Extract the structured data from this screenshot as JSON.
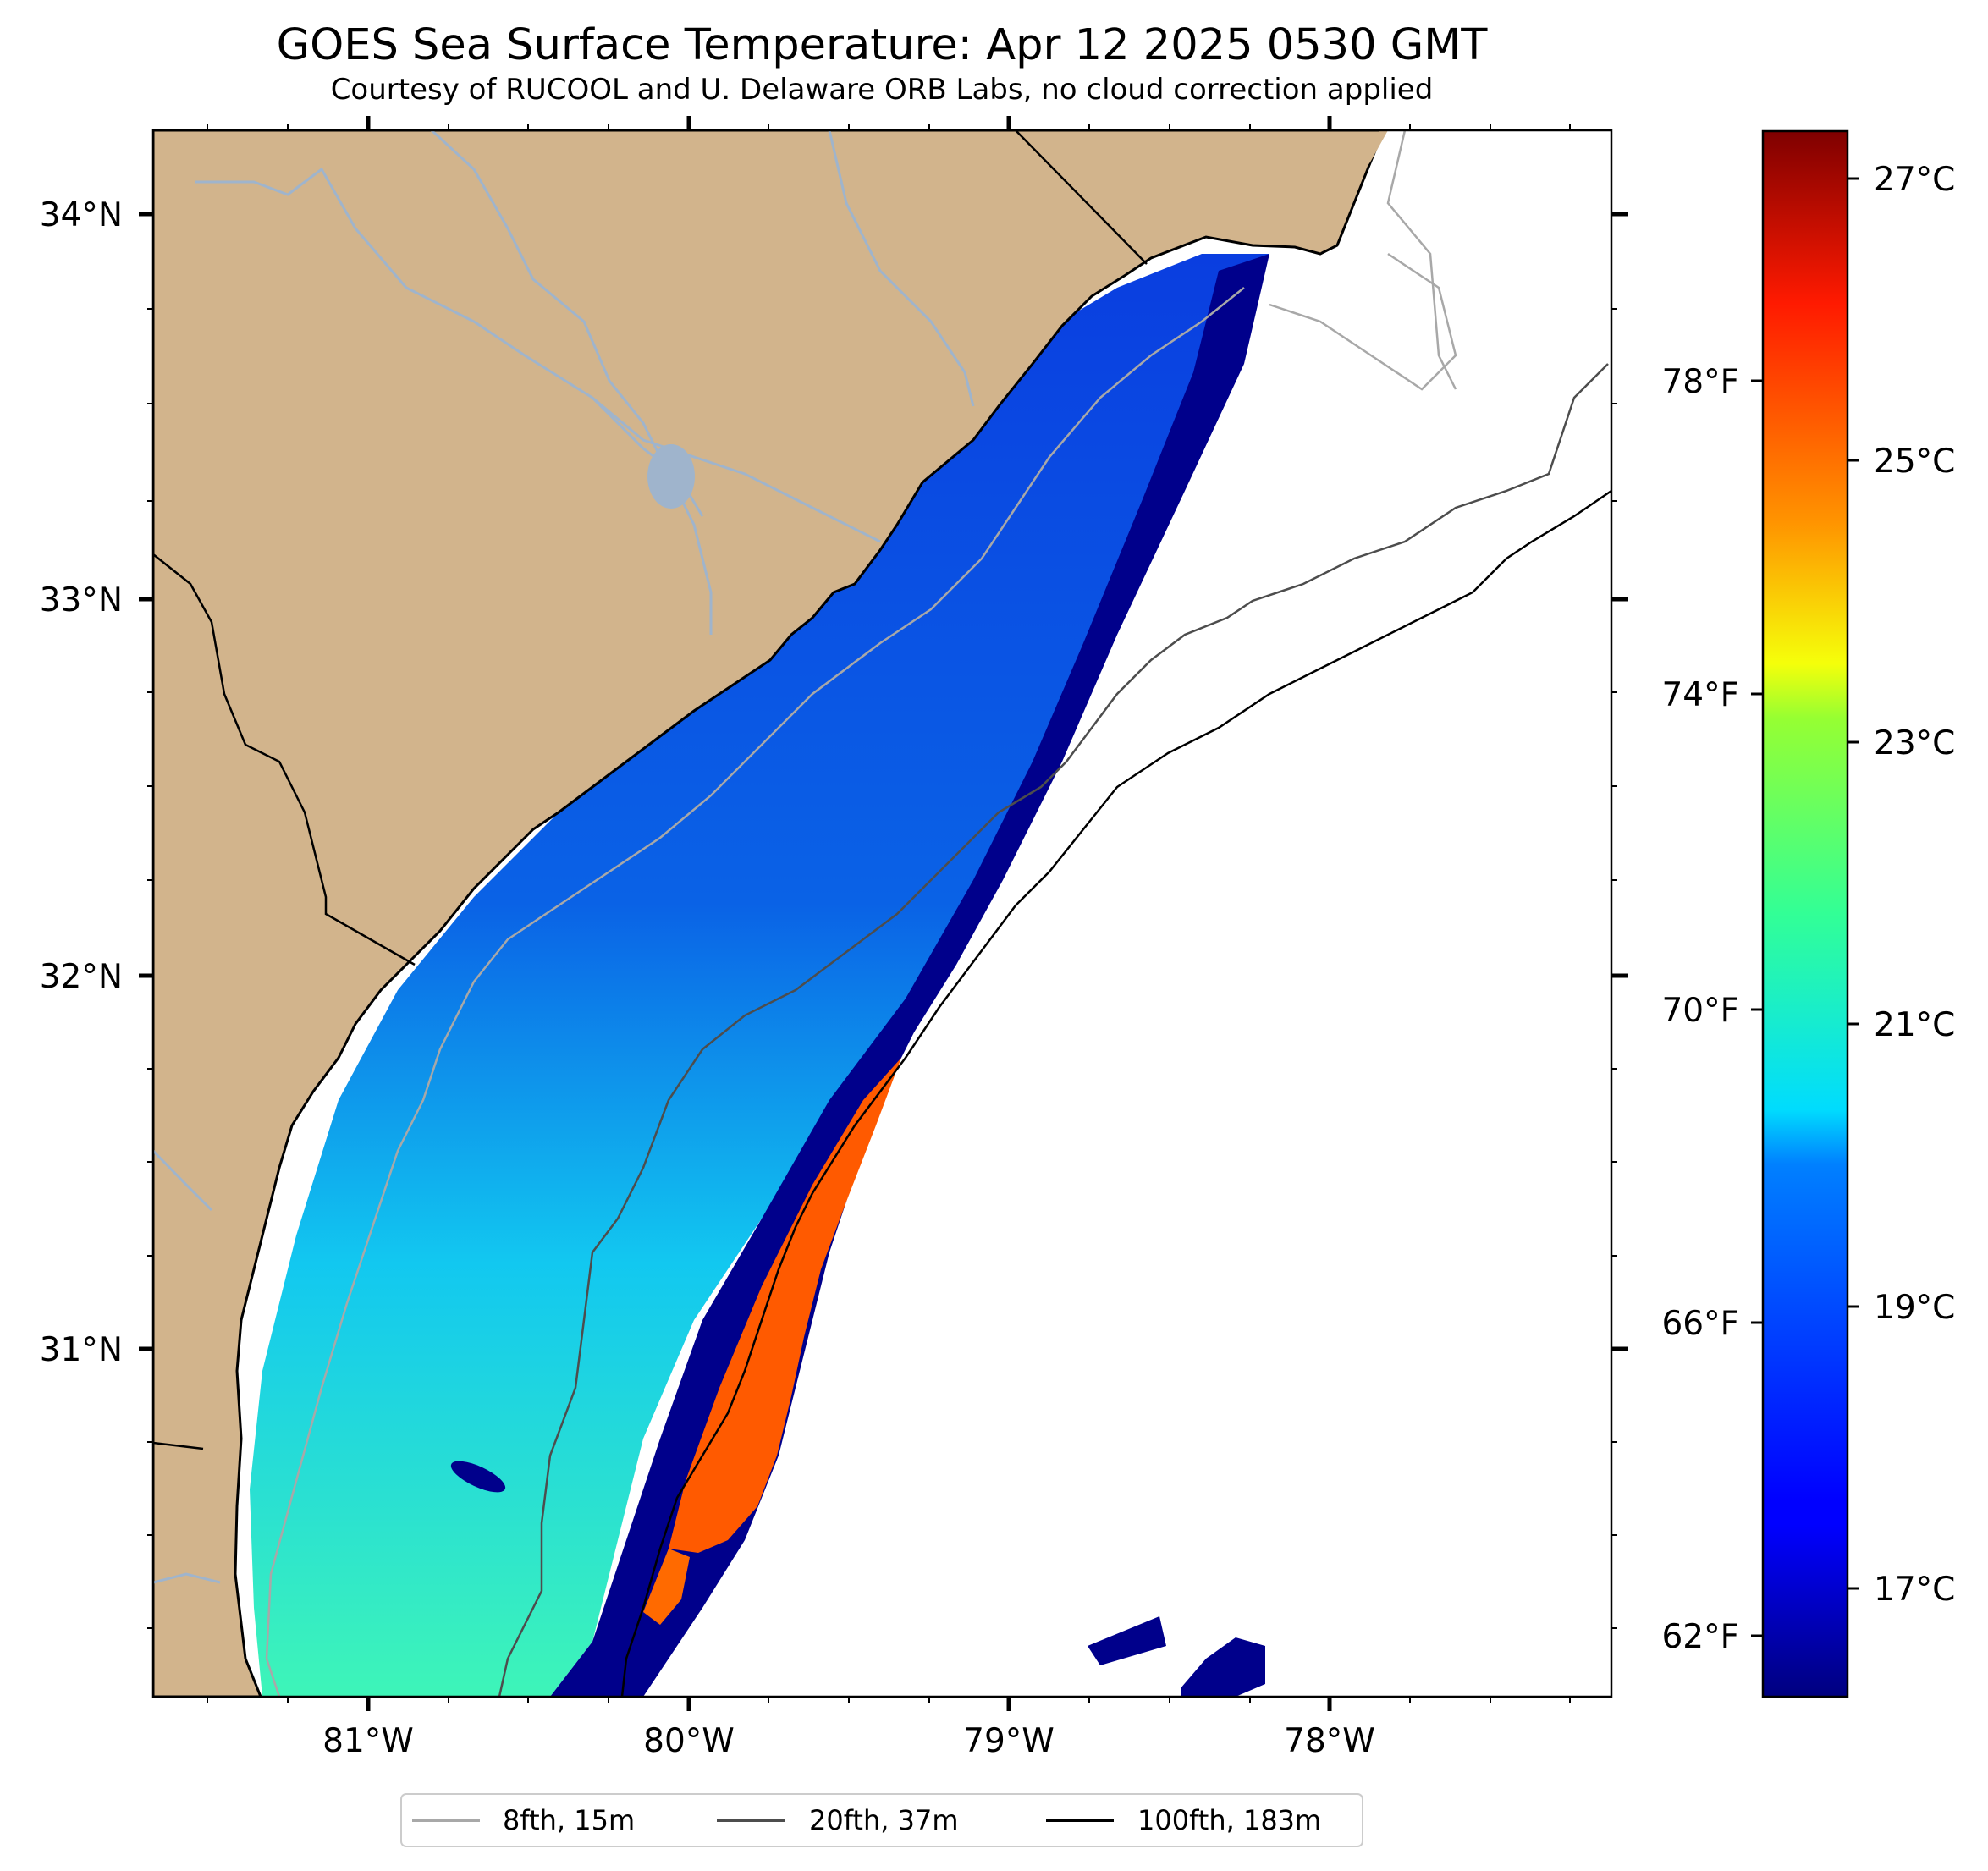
{
  "title": "GOES Sea Surface Temperature: Apr 12 2025 0530 GMT",
  "subtitle": "Courtesy of RUCOOL and U. Delaware ORB Labs, no cloud correction applied",
  "map": {
    "lon_range": [
      -81.67,
      -77.13
    ],
    "lat_range": [
      30.1,
      34.22
    ],
    "lon_ticks": [
      "81°W",
      "80°W",
      "79°W",
      "78°W"
    ],
    "lat_ticks": [
      "34°N",
      "33°N",
      "32°N",
      "31°N"
    ],
    "colors": {
      "land": "#d2b48c",
      "ocean_nodata": "#ffffff",
      "rivers": "#9fb4cc",
      "coast": "#000000"
    }
  },
  "colorbar": {
    "colormap": "jet",
    "range_c": [
      16.2,
      27.4
    ],
    "celsius_ticks": [
      "27°C",
      "25°C",
      "23°C",
      "21°C",
      "19°C",
      "17°C"
    ],
    "fahrenheit_ticks": [
      "78°F",
      "74°F",
      "70°F",
      "66°F",
      "62°F"
    ]
  },
  "legend": [
    {
      "label": "8fth, 15m",
      "color": "#a8a8a8"
    },
    {
      "label": "20fth, 37m",
      "color": "#4d4d4d"
    },
    {
      "label": "100fth, 183m",
      "color": "#000000"
    }
  ]
}
